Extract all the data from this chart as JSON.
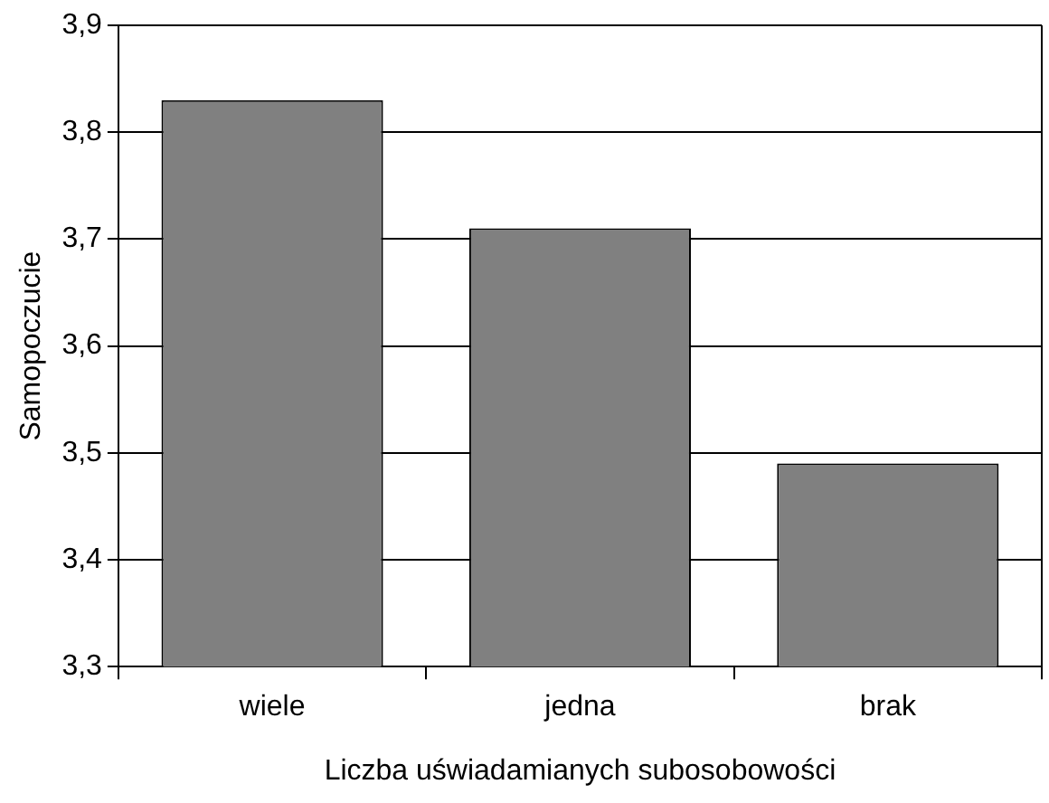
{
  "chart_data": {
    "type": "bar",
    "xlabel": "Liczba uświadamianych subosobowości",
    "ylabel": "Samopoczucie",
    "categories": [
      "wiele",
      "jedna",
      "brak"
    ],
    "values": [
      3.83,
      3.71,
      3.49
    ],
    "color": "#808080",
    "ylim": [
      3.3,
      3.9
    ],
    "yticks": [
      {
        "value": 3.3,
        "label": "3,3"
      },
      {
        "value": 3.4,
        "label": "3,4"
      },
      {
        "value": 3.5,
        "label": "3,5"
      },
      {
        "value": 3.6,
        "label": "3,6"
      },
      {
        "value": 3.7,
        "label": "3,7"
      },
      {
        "value": 3.8,
        "label": "3,8"
      },
      {
        "value": 3.9,
        "label": "3,9"
      }
    ],
    "grid": "y",
    "legend": false
  }
}
